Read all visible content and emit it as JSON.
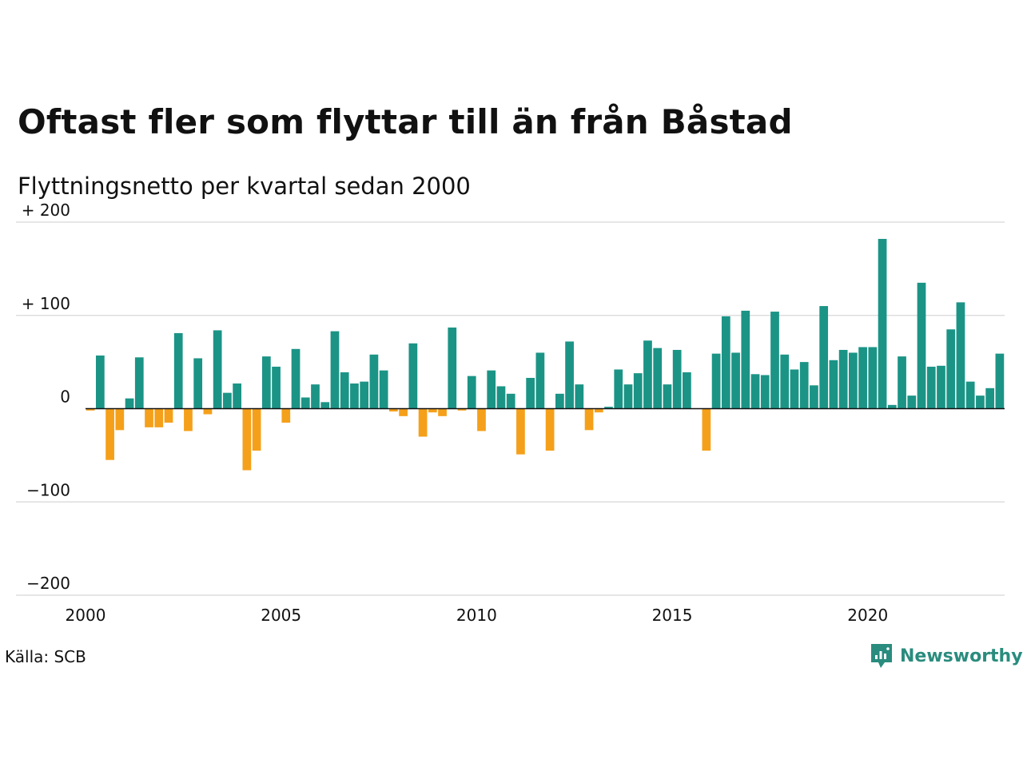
{
  "title": "Oftast fler som flyttar till än från Båstad",
  "subtitle": "Flyttningsnetto per kvartal sedan 2000",
  "source": "Källa: SCB",
  "brand": {
    "name": "Newsworthy",
    "icon": "newsworthy-logo-icon"
  },
  "colors": {
    "positive": "#1b9486",
    "negative": "#f5a01a",
    "grid": "#dddddd",
    "zero_line": "#111111"
  },
  "chart_data": {
    "type": "bar",
    "title": "Oftast fler som flyttar till än från Båstad",
    "subtitle": "Flyttningsnetto per kvartal sedan 2000",
    "x_start": 2000,
    "x_step": 0.25,
    "xlim": [
      2000,
      2023.5
    ],
    "ylim": [
      -200,
      200
    ],
    "y_ticks": [
      200,
      100,
      0,
      -100,
      -200
    ],
    "y_tick_labels": [
      "+ 200",
      "+ 100",
      "0",
      "−100",
      "−200"
    ],
    "x_ticks": [
      2000,
      2005,
      2010,
      2015,
      2020
    ],
    "x_tick_labels": [
      "2000",
      "2005",
      "2010",
      "2015",
      "2020"
    ],
    "grid": true,
    "values": [
      -2,
      57,
      -55,
      -23,
      11,
      55,
      -20,
      -20,
      -15,
      81,
      -24,
      54,
      -6,
      84,
      17,
      27,
      -66,
      -45,
      56,
      45,
      -15,
      64,
      12,
      26,
      7,
      83,
      39,
      27,
      29,
      58,
      41,
      -3,
      -8,
      70,
      -30,
      -4,
      -8,
      87,
      -2,
      35,
      -24,
      41,
      24,
      16,
      -49,
      33,
      60,
      -45,
      16,
      72,
      26,
      -23,
      -4,
      2,
      42,
      26,
      38,
      73,
      65,
      26,
      63,
      39,
      0,
      -45,
      59,
      99,
      60,
      105,
      37,
      36,
      104,
      58,
      42,
      50,
      25,
      110,
      52,
      63,
      60,
      66,
      66,
      182,
      4,
      56,
      14,
      135,
      45,
      46,
      85,
      114,
      29,
      14,
      22,
      59
    ]
  }
}
